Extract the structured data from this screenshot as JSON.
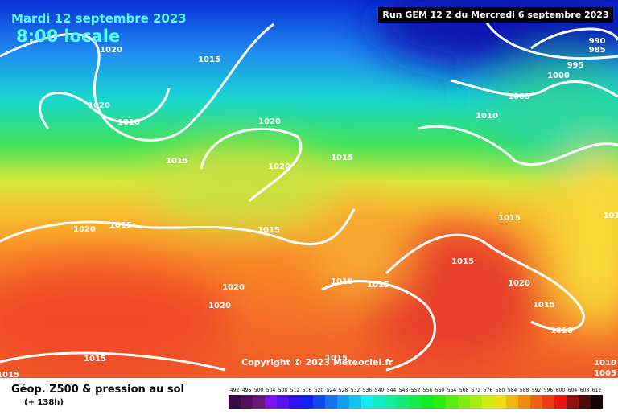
{
  "header": {
    "date": "Mardi 12 septembre 2023",
    "time": "8:00 locale",
    "run": "Run GEM 12 Z du Mercredi 6 septembre 2023"
  },
  "map": {
    "isobar_labels": [
      "1020",
      "1015",
      "1020",
      "1010",
      "1020",
      "1015",
      "1020",
      "1015",
      "1015",
      "1020",
      "1015",
      "1015",
      "1015",
      "1015",
      "1020",
      "1015",
      "1010",
      "1015",
      "1010",
      "1005",
      "1000",
      "995",
      "990",
      "985",
      "1015",
      "1015",
      "1015",
      "1020",
      "1020",
      "1010",
      "1005",
      "101"
    ]
  },
  "copyright": "Copyright © 2023 Meteociel.fr",
  "legend": {
    "title": "Géop. Z500 & pression au sol",
    "subtitle": "(+ 138h)",
    "values": [
      492,
      496,
      500,
      504,
      508,
      512,
      516,
      520,
      524,
      528,
      532,
      536,
      540,
      544,
      548,
      552,
      556,
      560,
      564,
      568,
      572,
      576,
      580,
      584,
      588,
      592,
      596,
      600,
      604,
      608,
      612
    ]
  }
}
